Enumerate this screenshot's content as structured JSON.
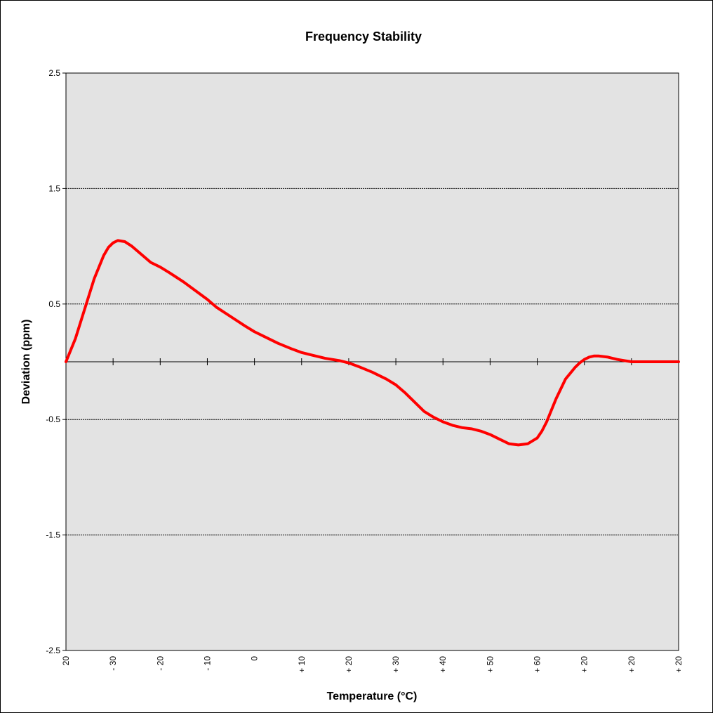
{
  "chart_data": {
    "type": "line",
    "title": "Frequency Stability",
    "xlabel": "Temperature (°C)",
    "ylabel": "Deviation (ppm)",
    "ylim": [
      -2.5,
      2.5
    ],
    "y_ticks": [
      "2.5",
      "1.5",
      "0.5",
      "-0.5",
      "-1.5",
      "-2.5"
    ],
    "y_tick_values": [
      2.5,
      1.5,
      0.5,
      -0.5,
      -1.5,
      -2.5
    ],
    "x_tick_labels": [
      "20",
      "- 30",
      "- 20",
      "- 10",
      "0",
      "+ 10",
      "+ 20",
      "+ 30",
      "+ 40",
      "+ 50",
      "+ 60",
      "+ 20",
      "+ 20",
      "+ 20"
    ],
    "x_tick_positions": [
      0,
      1,
      2,
      3,
      4,
      5,
      6,
      7,
      8,
      9,
      10,
      11,
      12,
      13
    ],
    "xlim": [
      0,
      13
    ],
    "grid": "horizontal",
    "colors": {
      "series": "#ff0000",
      "plot_bg": "#e3e3e3",
      "grid": "#000000"
    },
    "series": [
      {
        "x": [
          0,
          0.2,
          0.4,
          0.6,
          0.8,
          0.9,
          1.0,
          1.1,
          1.25,
          1.4,
          1.6,
          1.8,
          2.0,
          2.2,
          2.5,
          2.8,
          3.0,
          3.2,
          3.5,
          3.8,
          4.0,
          4.2,
          4.5,
          4.8,
          5.0,
          5.2,
          5.5,
          5.8,
          6.0,
          6.2,
          6.5,
          6.8,
          7.0,
          7.2,
          7.4,
          7.6,
          7.8,
          8.0,
          8.2,
          8.4,
          8.6,
          8.8,
          9.0,
          9.2,
          9.4,
          9.6,
          9.8,
          10.0,
          10.1,
          10.2,
          10.3,
          10.4,
          10.6,
          10.8,
          10.9,
          11.0,
          11.1,
          11.2,
          11.3,
          11.5,
          11.7,
          12.0,
          12.5,
          13.0
        ],
        "y": [
          0.0,
          0.2,
          0.46,
          0.72,
          0.92,
          0.99,
          1.03,
          1.05,
          1.04,
          1.0,
          0.93,
          0.86,
          0.82,
          0.77,
          0.69,
          0.6,
          0.54,
          0.47,
          0.39,
          0.31,
          0.26,
          0.22,
          0.16,
          0.11,
          0.08,
          0.06,
          0.03,
          0.01,
          -0.01,
          -0.04,
          -0.09,
          -0.15,
          -0.2,
          -0.27,
          -0.35,
          -0.43,
          -0.48,
          -0.52,
          -0.55,
          -0.57,
          -0.58,
          -0.6,
          -0.63,
          -0.67,
          -0.71,
          -0.72,
          -0.71,
          -0.66,
          -0.6,
          -0.52,
          -0.42,
          -0.32,
          -0.15,
          -0.05,
          -0.01,
          0.02,
          0.04,
          0.05,
          0.05,
          0.04,
          0.02,
          0.0,
          0.0,
          0.0
        ]
      }
    ]
  }
}
